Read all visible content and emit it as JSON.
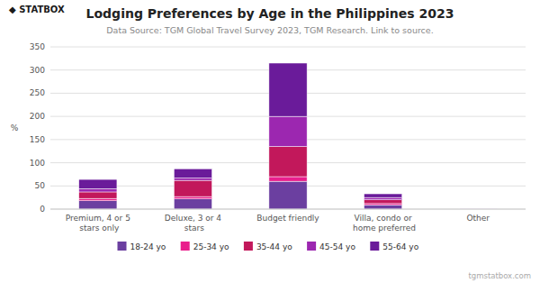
{
  "chart_data": {
    "type": "bar",
    "stacked": true,
    "title": "Lodging Preferences by Age in the Philippines 2023",
    "subtitle": "Data Source: TGM Global Travel Survey 2023, TGM Research. Link to source.",
    "annotations": [
      "◆ STATBOX",
      "tgmstatbox.com"
    ],
    "ylabel": "%",
    "categories": [
      "Premium, 4 or 5 stars only",
      "Deluxe, 3 or 4 stars",
      "Budget friendly",
      "Villa, condo or home preferred",
      "Other"
    ],
    "series": [
      {
        "name": "18-24 yo",
        "color": "#6b3fa0",
        "values": [
          18,
          22,
          60,
          9,
          1
        ]
      },
      {
        "name": "25-34 yo",
        "color": "#e91e8c",
        "values": [
          5,
          5,
          10,
          3,
          0
        ]
      },
      {
        "name": "35-44 yo",
        "color": "#c2185b",
        "values": [
          14,
          35,
          65,
          8,
          0
        ]
      },
      {
        "name": "45-54 yo",
        "color": "#9c27b0",
        "values": [
          7,
          5,
          65,
          5,
          0
        ]
      },
      {
        "name": "55-64 yo",
        "color": "#6a1b9a",
        "values": [
          20,
          20,
          115,
          8,
          0
        ]
      }
    ],
    "ylim": [
      0,
      350
    ],
    "yticks": [
      0,
      50,
      100,
      150,
      200,
      250,
      300,
      350
    ],
    "grid": true,
    "legend": "bottom"
  }
}
